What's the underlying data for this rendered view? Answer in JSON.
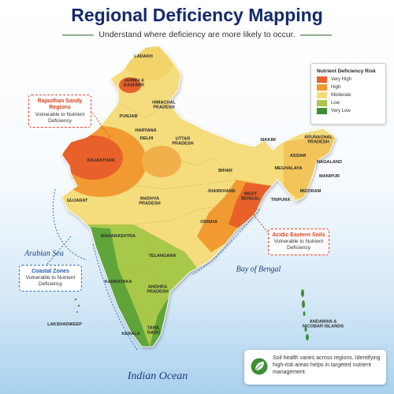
{
  "header": {
    "title": "Regional Deficiency Mapping",
    "subtitle": "Understand where deficiency are more likely to occur."
  },
  "legend": {
    "title": "Nutrient Deficiency Risk",
    "items": [
      {
        "label": "Very High",
        "color": "#e8602a"
      },
      {
        "label": "High",
        "color": "#f29a32"
      },
      {
        "label": "Moderate",
        "color": "#f5dc7c"
      },
      {
        "label": "Low",
        "color": "#a8c84a"
      },
      {
        "label": "Very Low",
        "color": "#3e8e35"
      }
    ]
  },
  "callouts": [
    {
      "title": "Rajasthan Sandy Regions",
      "text": "Vulnerable to Nutrient Deficiency"
    },
    {
      "title": "Coastal Zones",
      "text": "Vulnerable to Nutrient Deficiency"
    },
    {
      "title": "Acidic Eastern Soils",
      "text": "Vulnerable to Nutrient Deficiency"
    }
  ],
  "seas": [
    "Arabian Sea",
    "Bay of Bengal",
    "Indian Ocean"
  ],
  "states": [
    "LADAKH",
    "JAMMU & KASHMIR",
    "HIMACHAL PRADESH",
    "PUNJAB",
    "HARYANA",
    "DELHI",
    "RAJASTHAN",
    "UTTAR PRADESH",
    "GUJARAT",
    "MADHYA PRADESH",
    "BIHAR",
    "JHARKHAND",
    "WEST BENGAL",
    "ODISHA",
    "MAHARASHTRA",
    "TELANGANA",
    "KARNATAKA",
    "ANDHRA PRADESH",
    "TAMIL NADU",
    "KERALA",
    "SIKKIM",
    "ARUNACHAL PRADESH",
    "ASSAM",
    "NAGALAND",
    "MEGHALAYA",
    "MANIPUR",
    "TRIPURA",
    "MIZORAM",
    "LAKSHADWEEP",
    "ANDAMAN & NICOBAR ISLANDS"
  ],
  "note": "Soil health varies across regions. Identifying high-risk areas helps in targeted nutrient management."
}
